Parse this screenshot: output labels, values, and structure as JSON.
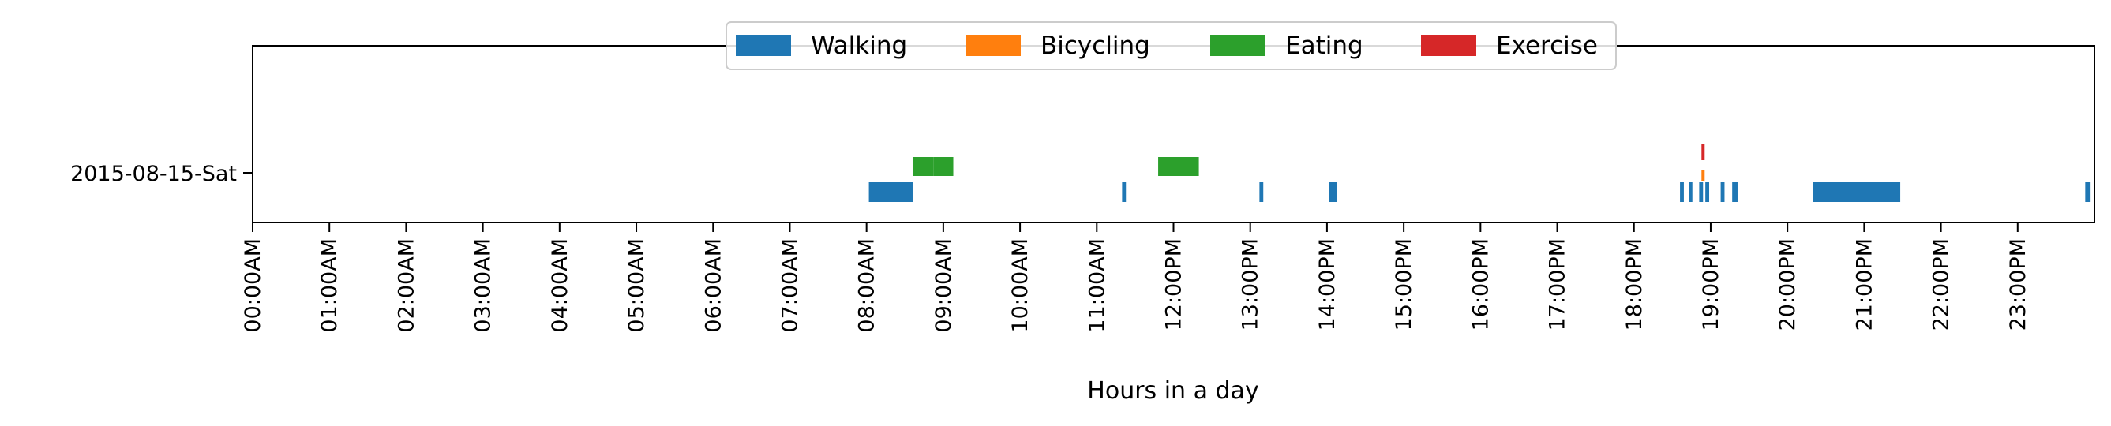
{
  "chart_data": {
    "type": "timeline",
    "title": "",
    "xlabel": "Hours in a day",
    "ylabel": "",
    "xlim": [
      0,
      24
    ],
    "day_label": "2015-08-15-Sat",
    "x_ticks": [
      "00:00AM",
      "01:00AM",
      "02:00AM",
      "03:00AM",
      "04:00AM",
      "05:00AM",
      "06:00AM",
      "07:00AM",
      "08:00AM",
      "09:00AM",
      "10:00AM",
      "11:00AM",
      "12:00PM",
      "13:00PM",
      "14:00PM",
      "15:00PM",
      "16:00PM",
      "17:00PM",
      "18:00PM",
      "19:00PM",
      "20:00PM",
      "21:00PM",
      "22:00PM",
      "23:00PM"
    ],
    "legend_position": "top-center",
    "grid": false,
    "series": [
      {
        "name": "Walking",
        "color": "#1f77b4",
        "lane": 0,
        "intervals": [
          [
            8.03,
            8.6
          ],
          [
            11.33,
            11.38
          ],
          [
            13.12,
            13.17
          ],
          [
            14.03,
            14.13
          ],
          [
            18.6,
            18.65
          ],
          [
            18.72,
            18.76
          ],
          [
            18.85,
            18.9
          ],
          [
            18.93,
            18.98
          ],
          [
            19.13,
            19.18
          ],
          [
            19.28,
            19.35
          ],
          [
            20.33,
            21.47
          ],
          [
            23.88,
            23.95
          ]
        ]
      },
      {
        "name": "Bicycling",
        "color": "#ff7f0e",
        "lane": 1,
        "intervals": [
          [
            18.88,
            18.92
          ]
        ]
      },
      {
        "name": "Eating",
        "color": "#2ca02c",
        "lane": 2,
        "intervals": [
          [
            8.6,
            8.87
          ],
          [
            8.87,
            9.13
          ],
          [
            11.8,
            12.33
          ]
        ]
      },
      {
        "name": "Exercise",
        "color": "#d62728",
        "lane": 3,
        "intervals": [
          [
            18.88,
            18.92
          ]
        ]
      }
    ]
  }
}
